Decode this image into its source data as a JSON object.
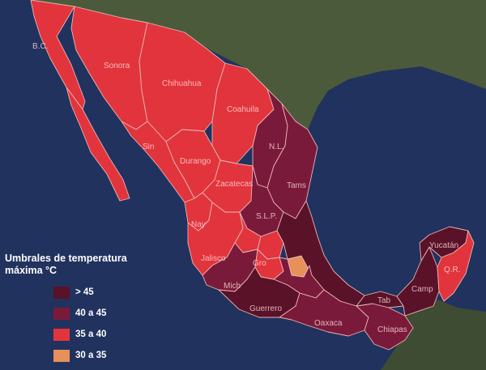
{
  "colors": {
    "ocean": "#21325e",
    "land": "#4b5a3a",
    "gt45": "#5a1228",
    "c40_45": "#7a1a3a",
    "c35_40": "#e2343c",
    "c30_35": "#e8905a",
    "border": "#e8b5b5"
  },
  "legend": {
    "title": "Umbrales de temperatura máxima °C",
    "items": [
      {
        "label": "> 45",
        "color": "#5a1228"
      },
      {
        "label": "40 a 45",
        "color": "#7a1a3a"
      },
      {
        "label": "35 a 40",
        "color": "#e2343c"
      },
      {
        "label": "30 a 35",
        "color": "#e8905a"
      }
    ]
  },
  "states": [
    {
      "label": "B.C.",
      "category": "35 a 40"
    },
    {
      "label": "Sonora",
      "category": "35 a 40"
    },
    {
      "label": "Chihuahua",
      "category": "35 a 40"
    },
    {
      "label": "Coahuila",
      "category": "35 a 40"
    },
    {
      "label": "N.L.",
      "category": "40 a 45"
    },
    {
      "label": "Tams",
      "category": "40 a 45"
    },
    {
      "label": "Sin",
      "category": "35 a 40"
    },
    {
      "label": "Durango",
      "category": "35 a 40"
    },
    {
      "label": "Zacatecas",
      "category": "35 a 40"
    },
    {
      "label": "S.L.P.",
      "category": "40 a 45"
    },
    {
      "label": "Nay",
      "category": "35 a 40"
    },
    {
      "label": "Jalisco",
      "category": "35 a 40"
    },
    {
      "label": "Mich",
      "category": "40 a 45"
    },
    {
      "label": "Gro",
      "category": "35 a 40"
    },
    {
      "label": "Guerrero",
      "category": "> 45"
    },
    {
      "label": "Oaxaca",
      "category": "40 a 45"
    },
    {
      "label": "Chiapas",
      "category": "40 a 45"
    },
    {
      "label": "Tab",
      "category": "> 45"
    },
    {
      "label": "Camp",
      "category": "> 45"
    },
    {
      "label": "Yucatán",
      "category": "> 45"
    },
    {
      "label": "Q.R.",
      "category": "35 a 40"
    }
  ]
}
